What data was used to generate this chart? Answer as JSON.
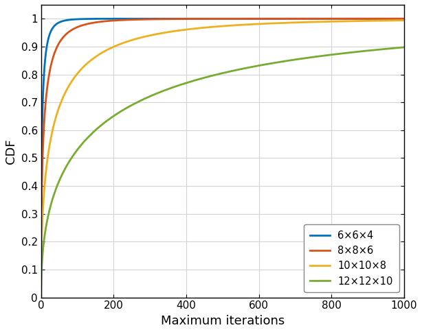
{
  "title": "",
  "xlabel": "Maximum iterations",
  "ylabel": "CDF",
  "xlim": [
    0,
    1000
  ],
  "ylim": [
    0,
    1.05
  ],
  "ytick_max": 1.0,
  "xticks": [
    0,
    200,
    400,
    600,
    800,
    1000
  ],
  "yticks": [
    0,
    0.1,
    0.2,
    0.3,
    0.4,
    0.5,
    0.6,
    0.7,
    0.8,
    0.9,
    1
  ],
  "series": [
    {
      "label": "6×6×4",
      "color": "#0072BD",
      "k": 0.55,
      "lam": 3.5
    },
    {
      "label": "8×8×6",
      "color": "#D95319",
      "k": 0.52,
      "lam": 9.0
    },
    {
      "label": "10×10×8",
      "color": "#EDB120",
      "k": 0.5,
      "lam": 38.0
    },
    {
      "label": "12×12×10",
      "color": "#77AC30",
      "k": 0.48,
      "lam": 180.0
    }
  ],
  "legend_loc": "lower right",
  "grid": true,
  "linewidth": 2.0,
  "bg_color": "#ffffff",
  "grid_color": "#d3d3d3"
}
